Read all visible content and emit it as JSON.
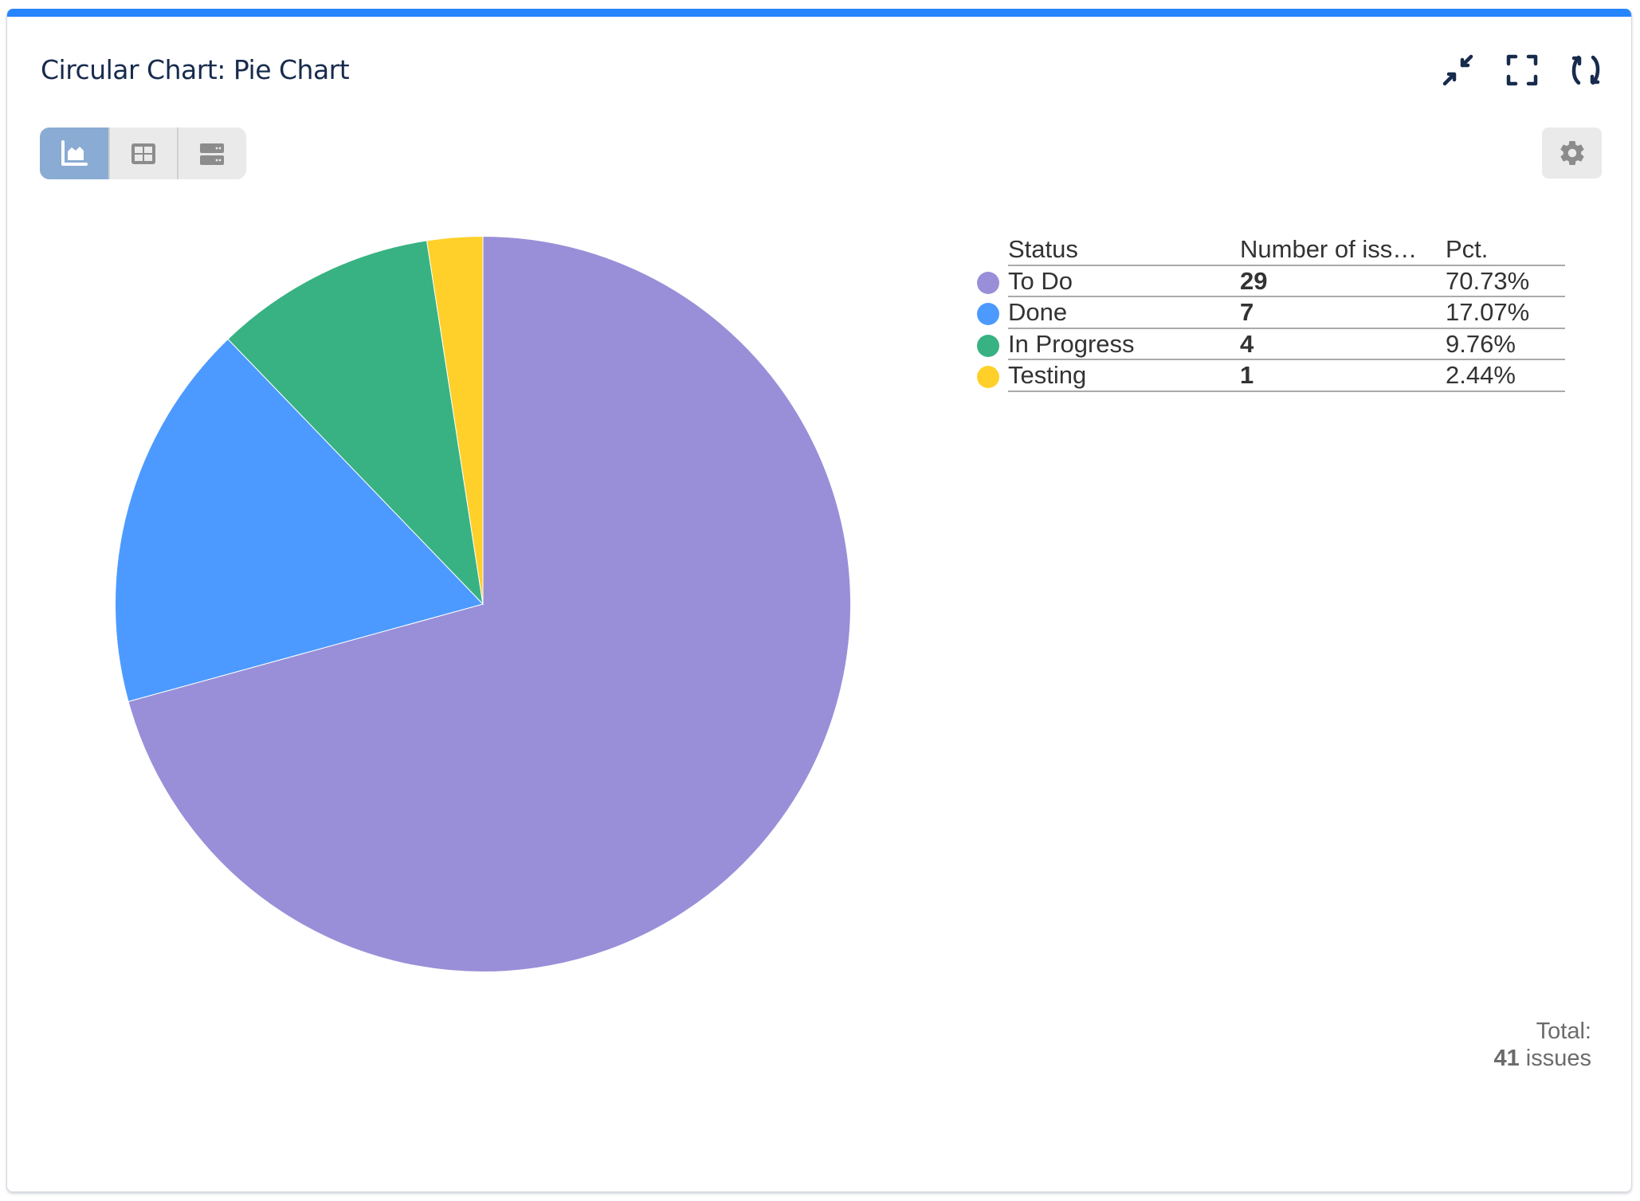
{
  "header": {
    "title": "Circular Chart: Pie Chart",
    "icons": [
      "collapse-icon",
      "fullscreen-icon",
      "refresh-icon"
    ]
  },
  "view_switch": {
    "buttons": [
      {
        "name": "chart-view",
        "icon": "area-chart-icon",
        "active": true
      },
      {
        "name": "table-view",
        "icon": "table-icon",
        "active": false
      },
      {
        "name": "list-view",
        "icon": "list-rows-icon",
        "active": false
      }
    ]
  },
  "settings": {
    "icon": "gear-icon"
  },
  "colors": {
    "accent_bar": "#2684ff",
    "title": "#172b4d",
    "active_view": "#8aabd3"
  },
  "legend": {
    "headers": {
      "status": "Status",
      "number": "Number of iss…",
      "pct": "Pct."
    },
    "rows": [
      {
        "status": "To Do",
        "number": "29",
        "pct": "70.73%",
        "color": "#998fd8"
      },
      {
        "status": "Done",
        "number": "7",
        "pct": "17.07%",
        "color": "#4c9aff"
      },
      {
        "status": "In Progress",
        "number": "4",
        "pct": "9.76%",
        "color": "#38b282"
      },
      {
        "status": "Testing",
        "number": "1",
        "pct": "2.44%",
        "color": "#ffd02a"
      }
    ]
  },
  "total": {
    "label": "Total:",
    "count": "41",
    "unit": "issues"
  },
  "chart_data": {
    "type": "pie",
    "title": "Circular Chart: Pie Chart",
    "categories": [
      "To Do",
      "Done",
      "In Progress",
      "Testing"
    ],
    "values": [
      29,
      7,
      4,
      1
    ],
    "percentages": [
      70.73,
      17.07,
      9.76,
      2.44
    ],
    "colors": [
      "#998fd8",
      "#4c9aff",
      "#38b282",
      "#ffd02a"
    ],
    "total": 41,
    "start_angle": "12 o'clock, clockwise",
    "legend_position": "right",
    "legend_columns": [
      "Status",
      "Number of issues",
      "Pct."
    ]
  }
}
